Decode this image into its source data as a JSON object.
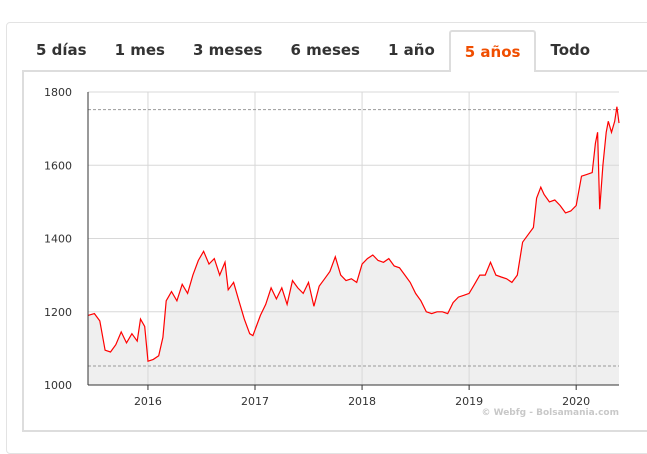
{
  "tabs": [
    {
      "label": "5 días"
    },
    {
      "label": "1 mes"
    },
    {
      "label": "3 meses"
    },
    {
      "label": "6 meses"
    },
    {
      "label": "1 año"
    },
    {
      "label": "5 años",
      "active": true
    },
    {
      "label": "Todo"
    }
  ],
  "colors": {
    "accent": "#f04e00",
    "line": "#ff0000",
    "area": "#efefef"
  },
  "chart_data": {
    "type": "area",
    "title": "",
    "xlabel": "",
    "ylabel": "",
    "ylim": [
      1000,
      1800
    ],
    "yticks": [
      "1000",
      "1200",
      "1400",
      "1600",
      "1800"
    ],
    "xticks": [
      "2016",
      "2017",
      "2018",
      "2019",
      "2020"
    ],
    "xlim": [
      2015.44,
      2020.4
    ],
    "grid": true,
    "reference_lines": [
      1752,
      1052
    ],
    "credit": "© Webfg - Bolsamania.com",
    "x": [
      2015.44,
      2015.5,
      2015.55,
      2015.6,
      2015.65,
      2015.7,
      2015.75,
      2015.8,
      2015.85,
      2015.9,
      2015.93,
      2015.97,
      2016.0,
      2016.05,
      2016.1,
      2016.14,
      2016.17,
      2016.22,
      2016.27,
      2016.32,
      2016.37,
      2016.42,
      2016.47,
      2016.52,
      2016.57,
      2016.62,
      2016.67,
      2016.72,
      2016.75,
      2016.8,
      2016.85,
      2016.9,
      2016.95,
      2016.98,
      2017.05,
      2017.1,
      2017.15,
      2017.2,
      2017.25,
      2017.3,
      2017.35,
      2017.4,
      2017.45,
      2017.5,
      2017.55,
      2017.6,
      2017.65,
      2017.7,
      2017.75,
      2017.8,
      2017.85,
      2017.9,
      2017.95,
      2018.0,
      2018.05,
      2018.1,
      2018.15,
      2018.2,
      2018.25,
      2018.3,
      2018.35,
      2018.4,
      2018.45,
      2018.5,
      2018.55,
      2018.6,
      2018.65,
      2018.7,
      2018.75,
      2018.8,
      2018.85,
      2018.9,
      2018.95,
      2019.0,
      2019.05,
      2019.1,
      2019.15,
      2019.2,
      2019.25,
      2019.3,
      2019.35,
      2019.4,
      2019.45,
      2019.5,
      2019.55,
      2019.6,
      2019.63,
      2019.67,
      2019.7,
      2019.75,
      2019.8,
      2019.85,
      2019.9,
      2019.95,
      2020.0,
      2020.05,
      2020.1,
      2020.15,
      2020.18,
      2020.2,
      2020.22,
      2020.25,
      2020.28,
      2020.3,
      2020.33,
      2020.36,
      2020.38,
      2020.4
    ],
    "y": [
      1190,
      1195,
      1175,
      1095,
      1090,
      1110,
      1145,
      1115,
      1140,
      1120,
      1180,
      1160,
      1065,
      1070,
      1080,
      1130,
      1230,
      1255,
      1230,
      1275,
      1250,
      1300,
      1340,
      1365,
      1330,
      1345,
      1300,
      1335,
      1260,
      1280,
      1230,
      1180,
      1140,
      1135,
      1190,
      1220,
      1265,
      1235,
      1265,
      1220,
      1285,
      1265,
      1250,
      1280,
      1215,
      1270,
      1290,
      1310,
      1350,
      1300,
      1285,
      1290,
      1280,
      1330,
      1345,
      1355,
      1340,
      1335,
      1345,
      1325,
      1320,
      1300,
      1280,
      1250,
      1230,
      1200,
      1195,
      1200,
      1200,
      1195,
      1225,
      1240,
      1245,
      1250,
      1275,
      1300,
      1300,
      1335,
      1300,
      1295,
      1290,
      1280,
      1300,
      1390,
      1410,
      1430,
      1510,
      1540,
      1520,
      1500,
      1505,
      1490,
      1470,
      1475,
      1490,
      1570,
      1575,
      1580,
      1660,
      1690,
      1480,
      1600,
      1690,
      1720,
      1690,
      1720,
      1760,
      1715
    ]
  }
}
